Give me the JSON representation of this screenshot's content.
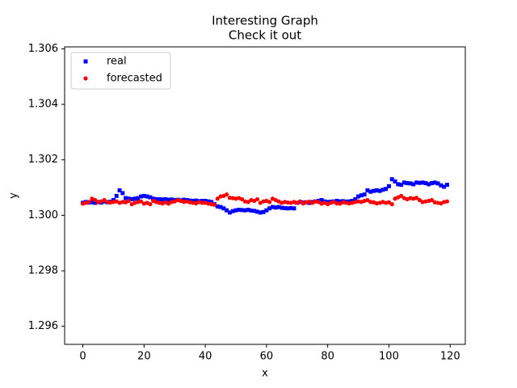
{
  "chart_data": {
    "type": "scatter",
    "title": "Interesting Graph",
    "subtitle": "Check it out",
    "x_label": "x",
    "y_label": "y",
    "x": [
      0,
      1,
      2,
      3,
      4,
      5,
      6,
      7,
      8,
      9,
      10,
      11,
      12,
      13,
      14,
      15,
      16,
      17,
      18,
      19,
      20,
      21,
      22,
      23,
      24,
      25,
      26,
      27,
      28,
      29,
      30,
      31,
      32,
      33,
      34,
      35,
      36,
      37,
      38,
      39,
      40,
      41,
      42,
      43,
      44,
      45,
      46,
      47,
      48,
      49,
      50,
      51,
      52,
      53,
      54,
      55,
      56,
      57,
      58,
      59,
      60,
      61,
      62,
      63,
      64,
      65,
      66,
      67,
      68,
      69,
      70,
      71,
      72,
      73,
      74,
      75,
      76,
      77,
      78,
      79,
      80,
      81,
      82,
      83,
      84,
      85,
      86,
      87,
      88,
      89,
      90,
      91,
      92,
      93,
      94,
      95,
      96,
      97,
      98,
      99,
      100,
      101,
      102,
      103,
      104,
      105,
      106,
      107,
      108,
      109,
      110,
      111,
      112,
      113,
      114,
      115,
      116,
      117,
      118,
      119
    ],
    "series": [
      {
        "name": "real",
        "color": "#0000ff",
        "marker": "square",
        "values": [
          1.30045,
          1.30048,
          1.30046,
          1.30047,
          1.30045,
          1.30048,
          1.30046,
          1.3005,
          1.30047,
          1.30049,
          1.30055,
          1.3007,
          1.3009,
          1.3008,
          1.30062,
          1.3006,
          1.30058,
          1.3006,
          1.30062,
          1.30068,
          1.3007,
          1.30068,
          1.30065,
          1.3006,
          1.30058,
          1.30058,
          1.30057,
          1.30058,
          1.30056,
          1.30057,
          1.30055,
          1.30056,
          1.30054,
          1.30056,
          1.30055,
          1.30053,
          1.30052,
          1.30053,
          1.30051,
          1.30052,
          1.30052,
          1.3005,
          1.30048,
          1.3004,
          1.30032,
          1.3003,
          1.30025,
          1.30018,
          1.3001,
          1.30015,
          1.30018,
          1.3002,
          1.30019,
          1.30018,
          1.3002,
          1.30017,
          1.30016,
          1.30013,
          1.3001,
          1.30012,
          1.30018,
          1.30025,
          1.3003,
          1.30028,
          1.3003,
          1.30027,
          1.30026,
          1.30025,
          1.30026,
          1.30025,
          1.30045,
          1.30048,
          1.30046,
          1.30047,
          1.30045,
          1.30048,
          1.3005,
          1.30052,
          1.30055,
          1.3005,
          1.30048,
          1.30049,
          1.3005,
          1.30052,
          1.3005,
          1.30051,
          1.30049,
          1.3005,
          1.30052,
          1.30058,
          1.30068,
          1.30072,
          1.30075,
          1.3009,
          1.30085,
          1.30088,
          1.3009,
          1.30088,
          1.30092,
          1.30095,
          1.30105,
          1.3013,
          1.30122,
          1.30112,
          1.3011,
          1.30118,
          1.30116,
          1.30115,
          1.30112,
          1.30118,
          1.30117,
          1.30118,
          1.30116,
          1.30112,
          1.30116,
          1.30118,
          1.30115,
          1.30108,
          1.30103,
          1.3011
        ]
      },
      {
        "name": "forecasted",
        "color": "#ff0000",
        "marker": "circle",
        "values": [
          1.30042,
          1.30045,
          1.30048,
          1.3006,
          1.30055,
          1.30047,
          1.3005,
          1.30055,
          1.30048,
          1.30046,
          1.30048,
          1.3005,
          1.30045,
          1.30048,
          1.30047,
          1.30052,
          1.3004,
          1.30045,
          1.30048,
          1.3005,
          1.30042,
          1.30045,
          1.3004,
          1.30052,
          1.30048,
          1.30045,
          1.30043,
          1.30047,
          1.30042,
          1.30048,
          1.3005,
          1.30055,
          1.30052,
          1.30048,
          1.3005,
          1.30047,
          1.30045,
          1.30043,
          1.30048,
          1.30045,
          1.30045,
          1.30042,
          1.3004,
          1.30038,
          1.3006,
          1.30068,
          1.3007,
          1.30075,
          1.30063,
          1.30062,
          1.3006,
          1.30062,
          1.30058,
          1.3005,
          1.30048,
          1.30055,
          1.30052,
          1.30058,
          1.30045,
          1.3005,
          1.30052,
          1.30048,
          1.3006,
          1.30055,
          1.3005,
          1.30045,
          1.30048,
          1.30046,
          1.30045,
          1.30048,
          1.30045,
          1.3005,
          1.30043,
          1.30047,
          1.30049,
          1.30045,
          1.3005,
          1.30048,
          1.30042,
          1.30045,
          1.3004,
          1.30045,
          1.30048,
          1.30043,
          1.30042,
          1.30047,
          1.30045,
          1.30043,
          1.30045,
          1.30048,
          1.3005,
          1.30048,
          1.30052,
          1.30055,
          1.30048,
          1.30047,
          1.30043,
          1.30045,
          1.30048,
          1.30045,
          1.30047,
          1.3004,
          1.3006,
          1.30065,
          1.3007,
          1.30062,
          1.30058,
          1.30062,
          1.3006,
          1.30063,
          1.30055,
          1.30048,
          1.3005,
          1.30052,
          1.30055,
          1.30047,
          1.30045,
          1.30043,
          1.30048,
          1.3005
        ]
      }
    ],
    "xlim": [
      -5.95,
      124.95
    ],
    "xticks": [
      0,
      20,
      40,
      60,
      80,
      100,
      120
    ],
    "ylim": [
      1.29535,
      1.30607
    ],
    "yticks": [
      1.296,
      1.298,
      {
        "value": 1.3,
        "label": "1.300"
      },
      1.302,
      1.304,
      1.306
    ],
    "legend": "upper left",
    "grid": false
  }
}
